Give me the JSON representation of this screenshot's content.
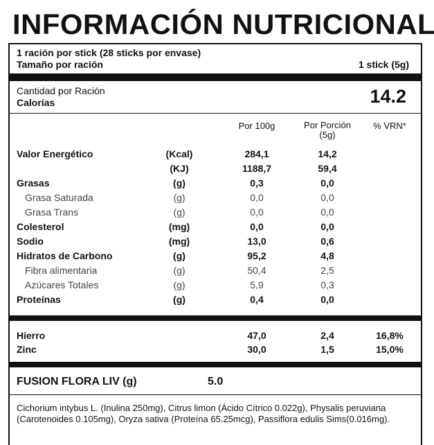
{
  "header": {
    "title": "INFORMACIÓN NUTRICIONAL"
  },
  "serving": {
    "servings": "1 ración por stick (28 sticks por envase)",
    "size_label": "Tamaño por ración",
    "size_value": "1 stick (5g)"
  },
  "calories": {
    "amount_label": "Cantidad por Ración",
    "label": "Calorías",
    "value": "14.2"
  },
  "table": {
    "columns": [
      "Por 100g",
      "Por Porción\n(5g)",
      "% VRN*"
    ],
    "rows": [
      {
        "label": "Valor Energético",
        "unit": "(Kcal)",
        "per_100g": "284,1",
        "per_portion": "14,2",
        "weight": "bold"
      },
      {
        "unit": "(KJ)",
        "per_100g": "1188,7",
        "per_portion": "59,4",
        "weight": "bold"
      },
      {
        "label": "Grasas",
        "unit": "(g)",
        "per_100g": "0,3",
        "per_portion": "0,0",
        "weight": "bold"
      },
      {
        "label": "Grasa Saturada",
        "unit": "(g)",
        "per_100g": "0,0",
        "per_portion": "0,0",
        "weight": "light"
      },
      {
        "label": "Grasa Trans",
        "unit": "(g)",
        "per_100g": "0,0",
        "per_portion": "0,0",
        "weight": "light"
      },
      {
        "label": "Colesterol",
        "unit": "(mg)",
        "per_100g": "0,0",
        "per_portion": "0,0",
        "weight": "bold"
      },
      {
        "label": "Sodio",
        "unit": "(mg)",
        "per_100g": "13,0",
        "per_portion": "0,6",
        "weight": "bold"
      },
      {
        "label": "Hidratos de Carbono",
        "unit": "(g)",
        "per_100g": "95,2",
        "per_portion": "4,8",
        "weight": "bold"
      },
      {
        "label": "Fibra alimentaria",
        "unit": "(g)",
        "per_100g": "50,4",
        "per_portion": "2,5",
        "weight": "light"
      },
      {
        "label": "Azúcares Totales",
        "unit": "(g)",
        "per_100g": "5,9",
        "per_portion": "0,3",
        "weight": "light"
      },
      {
        "label": "Proteínas",
        "unit": "(g)",
        "per_100g": "0,4",
        "per_portion": "0,0",
        "weight": "bold"
      }
    ],
    "minerals": [
      {
        "label": "Hierro",
        "per_100g": "47,0",
        "per_portion": "2,4",
        "vrn": "16,8%"
      },
      {
        "label": "Zinc",
        "per_100g": "30,0",
        "per_portion": "1,5",
        "vrn": "15,0%"
      }
    ]
  },
  "blend": {
    "label": "FUSION FLORA LIV (g)",
    "value": "5.0",
    "composition": "Cichorium intybus L. (Inulina 250mg), Citrus limon (Ácido Cítrico 0.022g), Physalis peruviana (Carotenoides 0.105mg), Oryza sativa (Proteína 65.25mcg), Passiflora edulis Sims(0.016mg)."
  }
}
